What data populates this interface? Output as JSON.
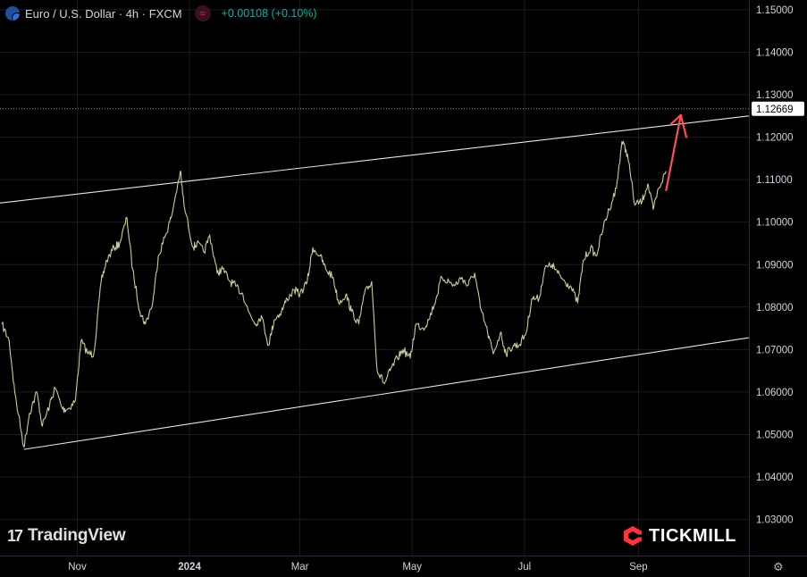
{
  "header": {
    "symbol": "Euro / U.S. Dollar · 4h · FXCM",
    "indicator_icon": "wave-icon",
    "change": "+0.00108 (+0.10%)"
  },
  "brand": {
    "tradingview": "TradingView",
    "tickmill": "TICKMILL"
  },
  "colors": {
    "background": "#000000",
    "price_series": "#c9cc9a",
    "channel_line": "#e6e6e6",
    "arrow": "#ff4d5e",
    "change_text": "#26a69a"
  },
  "chart_data": {
    "type": "line",
    "title": "Euro / U.S. Dollar · 4h · FXCM",
    "x_axis": {
      "ticks": [
        "Nov",
        "2024",
        "Mar",
        "May",
        "Jul",
        "Sep"
      ],
      "range": [
        "2023-09-20",
        "2024-10-31"
      ]
    },
    "y_axis": {
      "side": "right",
      "range": [
        1.0215,
        1.1523
      ],
      "ticks": [
        "1.15000",
        "1.14000",
        "1.13000",
        "1.12000",
        "1.11000",
        "1.10000",
        "1.09000",
        "1.08000",
        "1.07000",
        "1.06000",
        "1.05000",
        "1.04000",
        "1.03000"
      ]
    },
    "grid": true,
    "last_price": {
      "value": 1.12669,
      "label": "1.12669",
      "style": "dotted"
    },
    "series": [
      {
        "points": [
          [
            "2023-09-21",
            1.076
          ],
          [
            "2023-09-25",
            1.072
          ],
          [
            "2023-09-28",
            1.06
          ],
          [
            "2023-10-03",
            1.047
          ],
          [
            "2023-10-06",
            1.055
          ],
          [
            "2023-10-10",
            1.06
          ],
          [
            "2023-10-13",
            1.052
          ],
          [
            "2023-10-17",
            1.057
          ],
          [
            "2023-10-20",
            1.061
          ],
          [
            "2023-10-24",
            1.056
          ],
          [
            "2023-10-27",
            1.056
          ],
          [
            "2023-10-31",
            1.058
          ],
          [
            "2023-11-03",
            1.072
          ],
          [
            "2023-11-07",
            1.069
          ],
          [
            "2023-11-10",
            1.069
          ],
          [
            "2023-11-14",
            1.086
          ],
          [
            "2023-11-17",
            1.091
          ],
          [
            "2023-11-21",
            1.094
          ],
          [
            "2023-11-24",
            1.095
          ],
          [
            "2023-11-28",
            1.101
          ],
          [
            "2023-12-01",
            1.089
          ],
          [
            "2023-12-05",
            1.079
          ],
          [
            "2023-12-08",
            1.076
          ],
          [
            "2023-12-12",
            1.081
          ],
          [
            "2023-12-15",
            1.092
          ],
          [
            "2023-12-19",
            1.097
          ],
          [
            "2023-12-22",
            1.101
          ],
          [
            "2023-12-27",
            1.112
          ],
          [
            "2023-12-29",
            1.104
          ],
          [
            "2024-01-03",
            1.094
          ],
          [
            "2024-01-05",
            1.095
          ],
          [
            "2024-01-09",
            1.093
          ],
          [
            "2024-01-12",
            1.097
          ],
          [
            "2024-01-16",
            1.088
          ],
          [
            "2024-01-19",
            1.089
          ],
          [
            "2024-01-23",
            1.086
          ],
          [
            "2024-01-26",
            1.085
          ],
          [
            "2024-01-30",
            1.083
          ],
          [
            "2024-02-02",
            1.079
          ],
          [
            "2024-02-06",
            1.076
          ],
          [
            "2024-02-09",
            1.078
          ],
          [
            "2024-02-13",
            1.071
          ],
          [
            "2024-02-16",
            1.077
          ],
          [
            "2024-02-20",
            1.079
          ],
          [
            "2024-02-23",
            1.082
          ],
          [
            "2024-02-27",
            1.084
          ],
          [
            "2024-03-01",
            1.083
          ],
          [
            "2024-03-05",
            1.086
          ],
          [
            "2024-03-08",
            1.094
          ],
          [
            "2024-03-12",
            1.092
          ],
          [
            "2024-03-15",
            1.089
          ],
          [
            "2024-03-19",
            1.087
          ],
          [
            "2024-03-22",
            1.081
          ],
          [
            "2024-03-26",
            1.083
          ],
          [
            "2024-03-29",
            1.079
          ],
          [
            "2024-04-02",
            1.076
          ],
          [
            "2024-04-05",
            1.083
          ],
          [
            "2024-04-09",
            1.086
          ],
          [
            "2024-04-12",
            1.065
          ],
          [
            "2024-04-16",
            1.062
          ],
          [
            "2024-04-19",
            1.065
          ],
          [
            "2024-04-23",
            1.068
          ],
          [
            "2024-04-26",
            1.07
          ],
          [
            "2024-04-30",
            1.068
          ],
          [
            "2024-05-03",
            1.076
          ],
          [
            "2024-05-07",
            1.075
          ],
          [
            "2024-05-10",
            1.077
          ],
          [
            "2024-05-14",
            1.082
          ],
          [
            "2024-05-17",
            1.087
          ],
          [
            "2024-05-21",
            1.086
          ],
          [
            "2024-05-24",
            1.085
          ],
          [
            "2024-05-28",
            1.087
          ],
          [
            "2024-05-31",
            1.085
          ],
          [
            "2024-06-04",
            1.088
          ],
          [
            "2024-06-07",
            1.08
          ],
          [
            "2024-06-11",
            1.074
          ],
          [
            "2024-06-14",
            1.069
          ],
          [
            "2024-06-18",
            1.074
          ],
          [
            "2024-06-21",
            1.069
          ],
          [
            "2024-06-25",
            1.071
          ],
          [
            "2024-06-28",
            1.071
          ],
          [
            "2024-07-02",
            1.074
          ],
          [
            "2024-07-05",
            1.082
          ],
          [
            "2024-07-09",
            1.082
          ],
          [
            "2024-07-12",
            1.089
          ],
          [
            "2024-07-16",
            1.09
          ],
          [
            "2024-07-19",
            1.088
          ],
          [
            "2024-07-23",
            1.086
          ],
          [
            "2024-07-26",
            1.085
          ],
          [
            "2024-07-30",
            1.081
          ],
          [
            "2024-08-02",
            1.091
          ],
          [
            "2024-08-06",
            1.094
          ],
          [
            "2024-08-09",
            1.092
          ],
          [
            "2024-08-13",
            1.099
          ],
          [
            "2024-08-16",
            1.103
          ],
          [
            "2024-08-20",
            1.108
          ],
          [
            "2024-08-23",
            1.119
          ],
          [
            "2024-08-26",
            1.116
          ],
          [
            "2024-08-30",
            1.104
          ],
          [
            "2024-09-03",
            1.105
          ],
          [
            "2024-09-06",
            1.109
          ],
          [
            "2024-09-09",
            1.103
          ],
          [
            "2024-09-12",
            1.108
          ],
          [
            "2024-09-16",
            1.112
          ]
        ]
      }
    ],
    "annotations": {
      "channel_upper": [
        [
          "2023-09-20",
          1.1045
        ],
        [
          "2024-10-31",
          1.125
        ]
      ],
      "channel_lower": [
        [
          "2023-10-03",
          1.0465
        ],
        [
          "2024-10-31",
          1.0728
        ]
      ],
      "projection_arrow": [
        [
          "2024-09-16",
          1.1075
        ],
        [
          "2024-09-24",
          1.1252
        ],
        [
          "2024-09-27",
          1.12
        ]
      ]
    }
  }
}
